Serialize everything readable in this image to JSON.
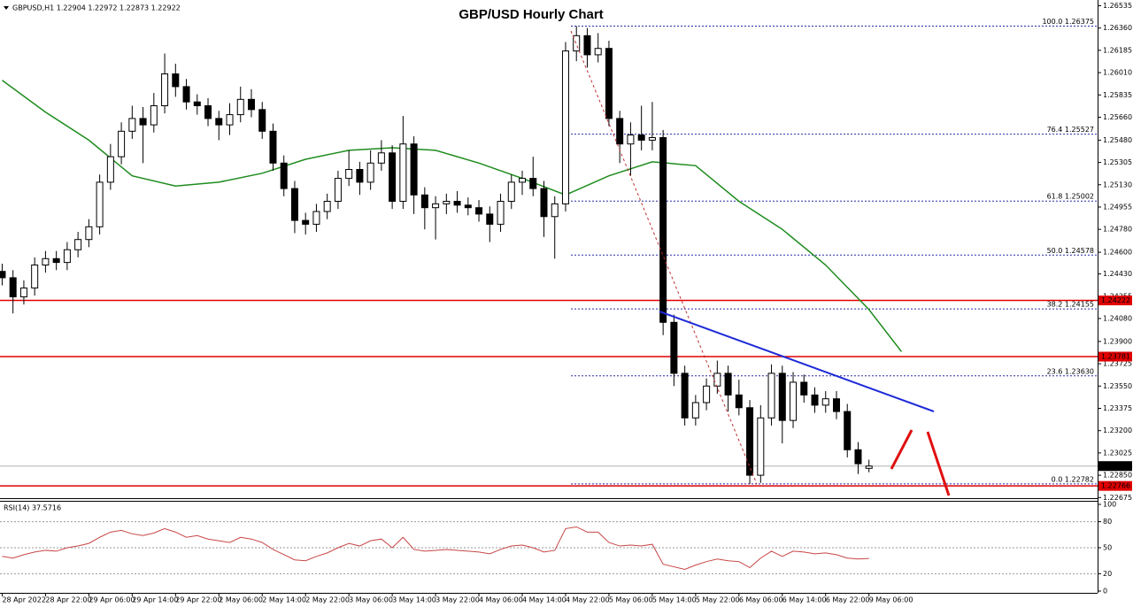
{
  "chart_data": {
    "type": "candlestick",
    "header": "GBPUSD,H1  1.22904 1.22972 1.22873 1.22922",
    "title": "GBP/USD Hourly Chart",
    "xlim": [
      -0.2,
      101.1
    ],
    "xticks": [
      {
        "value": 0,
        "label": "28 Apr 2022"
      },
      {
        "value": 4,
        "label": "28 Apr 22:00"
      },
      {
        "value": 8,
        "label": "29 Apr 06:00"
      },
      {
        "value": 12,
        "label": "29 Apr 14:00"
      },
      {
        "value": 16,
        "label": "29 Apr 22:00"
      },
      {
        "value": 20,
        "label": "2 May 06:00"
      },
      {
        "value": 24,
        "label": "2 May 14:00"
      },
      {
        "value": 28,
        "label": "2 May 22:00"
      },
      {
        "value": 32,
        "label": "3 May 06:00"
      },
      {
        "value": 36,
        "label": "3 May 14:00"
      },
      {
        "value": 40,
        "label": "3 May 22:00"
      },
      {
        "value": 44,
        "label": "4 May 06:00"
      },
      {
        "value": 48,
        "label": "4 May 14:00"
      },
      {
        "value": 52,
        "label": "4 May 22:00"
      },
      {
        "value": 56,
        "label": "5 May 06:00"
      },
      {
        "value": 60,
        "label": "5 May 14:00"
      },
      {
        "value": 64,
        "label": "5 May 22:00"
      },
      {
        "value": 68,
        "label": "6 May 06:00"
      },
      {
        "value": 72,
        "label": "6 May 14:00"
      },
      {
        "value": 76,
        "label": "6 May 22:00"
      },
      {
        "value": 80,
        "label": "9 May 06:00"
      }
    ],
    "ylim": [
      1.2267,
      1.2658
    ],
    "yticks": [
      1.26535,
      {
        "value": 1.2636,
        "label": "1.26360"
      },
      1.26185,
      {
        "value": 1.2601,
        "label": "1.26010"
      },
      1.25835,
      {
        "value": 1.2566,
        "label": "1.25660"
      },
      {
        "value": 1.2548,
        "label": "1.25480"
      },
      1.25305,
      {
        "value": 1.2513,
        "label": "1.25130"
      },
      1.24955,
      {
        "value": 1.2478,
        "label": "1.24780"
      },
      {
        "value": 1.246,
        "label": "1.24600"
      },
      {
        "value": 1.2443,
        "label": "1.24430"
      },
      1.24255,
      {
        "value": 1.2408,
        "label": "1.24080"
      },
      {
        "value": 1.239,
        "label": "1.23900"
      },
      1.23725,
      {
        "value": 1.2355,
        "label": "1.23550"
      },
      1.23375,
      {
        "value": 1.232,
        "label": "1.23200"
      },
      1.23025,
      {
        "value": 1.2285,
        "label": "1.22850"
      },
      1.22675
    ],
    "up_color": "#ffffff",
    "down_color": "#000000",
    "open": [
      1.2445,
      1.244,
      1.2425,
      1.2432,
      1.245,
      1.2455,
      1.2452,
      1.2462,
      1.247,
      1.248,
      1.2515,
      1.2535,
      1.2555,
      1.2565,
      1.256,
      1.2575,
      1.26,
      1.259,
      1.2578,
      1.2575,
      1.2565,
      1.256,
      1.2568,
      1.258,
      1.2572,
      1.2555,
      1.253,
      1.251,
      1.2485,
      1.2482,
      1.2492,
      1.25,
      1.2518,
      1.2525,
      1.2515,
      1.253,
      1.2538,
      1.25,
      1.2545,
      1.2505,
      1.2495,
      1.2498,
      1.25,
      1.2497,
      1.2495,
      1.249,
      1.2482,
      1.25,
      1.2515,
      1.2518,
      1.251,
      1.2488,
      1.2498,
      1.2618,
      1.263,
      1.2615,
      1.262,
      1.2565,
      1.2545,
      1.2552,
      1.2548,
      1.255,
      1.2405,
      1.2365,
      1.233,
      1.2342,
      1.2355,
      1.2365,
      1.2348,
      1.2338,
      1.2285,
      1.233,
      1.2365,
      1.2328,
      1.2358,
      1.2348,
      1.234,
      1.2345,
      1.2335,
      1.2305,
      1.22904
    ],
    "high": [
      1.2451,
      1.2446,
      1.2438,
      1.2456,
      1.2461,
      1.2461,
      1.2468,
      1.2476,
      1.2486,
      1.2521,
      1.2545,
      1.2562,
      1.2575,
      1.2574,
      1.2585,
      1.2616,
      1.2608,
      1.2596,
      1.2584,
      1.2581,
      1.2571,
      1.2577,
      1.259,
      1.2588,
      1.2578,
      1.2561,
      1.2536,
      1.2516,
      1.2491,
      1.2498,
      1.2506,
      1.2524,
      1.254,
      1.2531,
      1.254,
      1.2548,
      1.2544,
      1.2567,
      1.2551,
      1.2511,
      1.2504,
      1.2506,
      1.2508,
      1.2503,
      1.2501,
      1.2496,
      1.2506,
      1.2521,
      1.2524,
      1.2535,
      1.2516,
      1.2504,
      1.2625,
      1.26375,
      1.2636,
      1.2632,
      1.2626,
      1.2571,
      1.2562,
      1.2575,
      1.2578,
      1.2556,
      1.2411,
      1.2371,
      1.2348,
      1.2361,
      1.2375,
      1.2371,
      1.236,
      1.2344,
      1.234,
      1.2372,
      1.2371,
      1.2366,
      1.2364,
      1.2354,
      1.2351,
      1.2351,
      1.2341,
      1.2311,
      1.22972
    ],
    "low": [
      1.2434,
      1.2412,
      1.2419,
      1.2426,
      1.2444,
      1.2446,
      1.2446,
      1.2456,
      1.2464,
      1.2474,
      1.2509,
      1.2529,
      1.2549,
      1.253,
      1.2554,
      1.2569,
      1.2582,
      1.2572,
      1.2568,
      1.2559,
      1.2548,
      1.2552,
      1.2562,
      1.2566,
      1.2549,
      1.2524,
      1.2504,
      1.2475,
      1.2474,
      1.2476,
      1.2486,
      1.2494,
      1.2512,
      1.2505,
      1.2509,
      1.2524,
      1.2494,
      1.2494,
      1.249,
      1.2478,
      1.247,
      1.249,
      1.2491,
      1.2489,
      1.2484,
      1.2468,
      1.2476,
      1.2494,
      1.2505,
      1.2504,
      1.2472,
      1.2455,
      1.2492,
      1.261,
      1.2605,
      1.2609,
      1.2559,
      1.253,
      1.252,
      1.254,
      1.254,
      1.2395,
      1.2355,
      1.2324,
      1.2324,
      1.2336,
      1.2349,
      1.2335,
      1.2332,
      1.22782,
      1.2279,
      1.2324,
      1.231,
      1.2322,
      1.2342,
      1.2334,
      1.2334,
      1.2329,
      1.2299,
      1.2286,
      1.22873
    ],
    "close": [
      1.244,
      1.2425,
      1.2432,
      1.245,
      1.2455,
      1.2452,
      1.2462,
      1.247,
      1.248,
      1.2515,
      1.2535,
      1.2555,
      1.2565,
      1.256,
      1.2575,
      1.26,
      1.259,
      1.2578,
      1.2575,
      1.2565,
      1.256,
      1.2568,
      1.258,
      1.2572,
      1.2555,
      1.253,
      1.251,
      1.2485,
      1.2482,
      1.2492,
      1.25,
      1.2518,
      1.2525,
      1.2515,
      1.253,
      1.2538,
      1.25,
      1.2545,
      1.2505,
      1.2495,
      1.2498,
      1.25,
      1.2497,
      1.2495,
      1.249,
      1.2482,
      1.25,
      1.2515,
      1.2518,
      1.251,
      1.2488,
      1.2498,
      1.2618,
      1.263,
      1.2615,
      1.262,
      1.2565,
      1.2545,
      1.2552,
      1.2548,
      1.255,
      1.2405,
      1.2365,
      1.233,
      1.2342,
      1.2355,
      1.2365,
      1.2348,
      1.2338,
      1.2285,
      1.233,
      1.2365,
      1.2328,
      1.2358,
      1.2348,
      1.234,
      1.2345,
      1.2335,
      1.2305,
      1.2294,
      1.22922
    ],
    "ma": {
      "color": "#1e8c1e",
      "x": [
        0,
        4,
        8,
        12,
        16,
        20,
        24,
        28,
        32,
        36,
        40,
        44,
        48,
        52,
        56,
        60,
        64,
        68,
        72,
        76,
        80,
        83
      ],
      "values": [
        1.2595,
        1.257,
        1.2548,
        1.252,
        1.2512,
        1.2515,
        1.2522,
        1.2533,
        1.254,
        1.2542,
        1.254,
        1.253,
        1.2518,
        1.2505,
        1.252,
        1.2531,
        1.2528,
        1.25,
        1.2478,
        1.245,
        1.2415,
        1.2382
      ]
    },
    "levels": [
      {
        "value": 1.24222,
        "color": "#e00000"
      },
      {
        "value": 1.23781,
        "color": "#e00000"
      },
      {
        "value": 1.22766,
        "color": "#e00000"
      }
    ],
    "current_price": 1.22922,
    "fib_color": "#2a2aa8",
    "fib": [
      {
        "label": "100.0 1.26375",
        "value": 1.26375
      },
      {
        "label": "76.4 1.25527",
        "value": 1.25527
      },
      {
        "label": "61.8 1.25002",
        "value": 1.25002
      },
      {
        "label": "50.0 1.24578",
        "value": 1.24578
      },
      {
        "label": "38.2 1.24155",
        "value": 1.24155
      },
      {
        "label": "23.6 1.23630",
        "value": 1.2363
      },
      {
        "label": "0.0 1.22782",
        "value": 1.22782
      }
    ],
    "rsi": {
      "label": "RSI(14) 37.5716",
      "color": "#c84646",
      "ylim": [
        0,
        100
      ],
      "yticks": [
        100,
        80,
        50,
        20,
        0
      ],
      "values": [
        40,
        38,
        42,
        45,
        47,
        46,
        50,
        52,
        55,
        62,
        68,
        70,
        66,
        64,
        67,
        72,
        68,
        62,
        64,
        60,
        58,
        56,
        62,
        60,
        56,
        48,
        42,
        36,
        35,
        40,
        44,
        50,
        55,
        52,
        58,
        60,
        50,
        62,
        48,
        46,
        47,
        48,
        47,
        46,
        45,
        43,
        48,
        52,
        53,
        50,
        45,
        47,
        72,
        74,
        68,
        68,
        56,
        52,
        53,
        52,
        54,
        31,
        28,
        25,
        30,
        34,
        37,
        35,
        34,
        27,
        38,
        46,
        40,
        46,
        45,
        43,
        44,
        42,
        38,
        37,
        37.5716
      ]
    }
  }
}
